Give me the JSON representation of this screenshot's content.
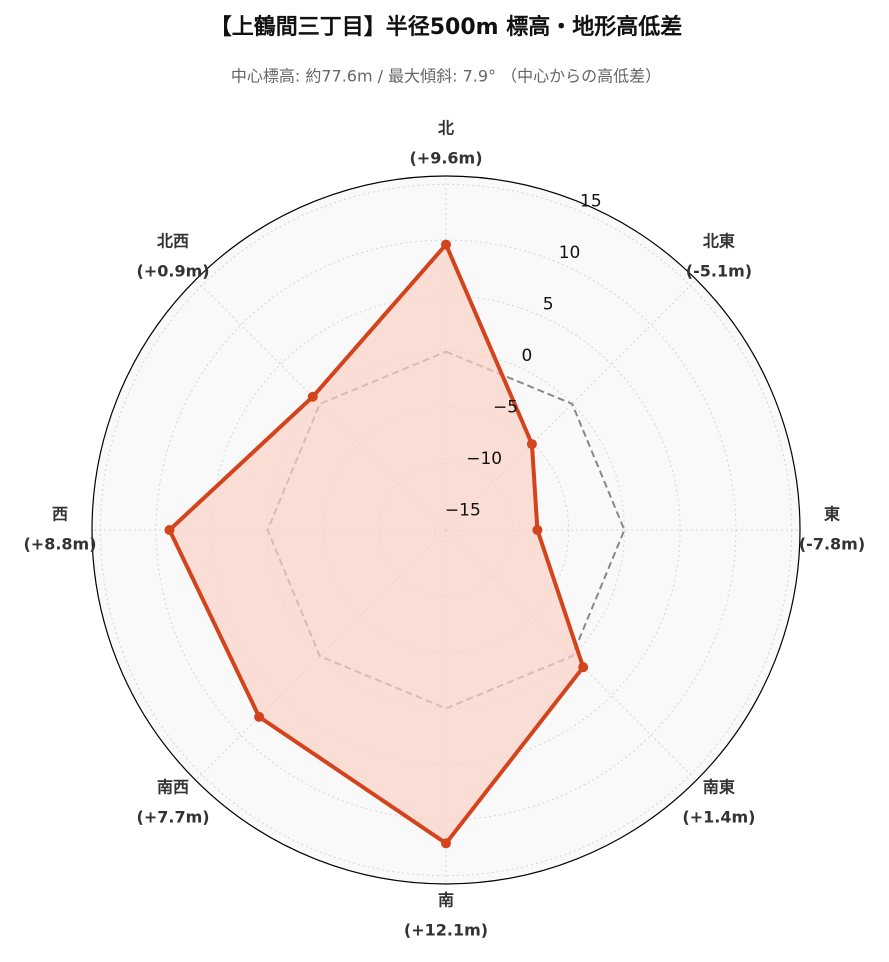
{
  "chart_data": {
    "type": "radar",
    "title": "【上鶴間三丁目】半径500m 標高・地形高低差",
    "subtitle": "中心標高: 約77.6m / 最大傾斜: 7.9° （中心からの高低差）",
    "categories": [
      "北",
      "北東",
      "東",
      "南東",
      "南",
      "南西",
      "西",
      "北西"
    ],
    "values": [
      9.6,
      -5.1,
      -7.8,
      1.4,
      12.1,
      7.7,
      8.8,
      0.9
    ],
    "value_labels": [
      "(+9.6m)",
      "(-5.1m)",
      "(-7.8m)",
      "(+1.4m)",
      "(+12.1m)",
      "(+7.7m)",
      "(+8.8m)",
      "(+0.9m)"
    ],
    "color": "#d4441c",
    "fill_color": "#fbd3c8",
    "reference_line": {
      "value": 0,
      "color": "#888888"
    },
    "ylim": [
      -16,
      15.75
    ],
    "yticks": [
      {
        "value": -15,
        "label": "−15"
      },
      {
        "value": -10,
        "label": "−10"
      },
      {
        "value": -5,
        "label": "−5"
      },
      0,
      5,
      10,
      15
    ],
    "grid": true
  }
}
